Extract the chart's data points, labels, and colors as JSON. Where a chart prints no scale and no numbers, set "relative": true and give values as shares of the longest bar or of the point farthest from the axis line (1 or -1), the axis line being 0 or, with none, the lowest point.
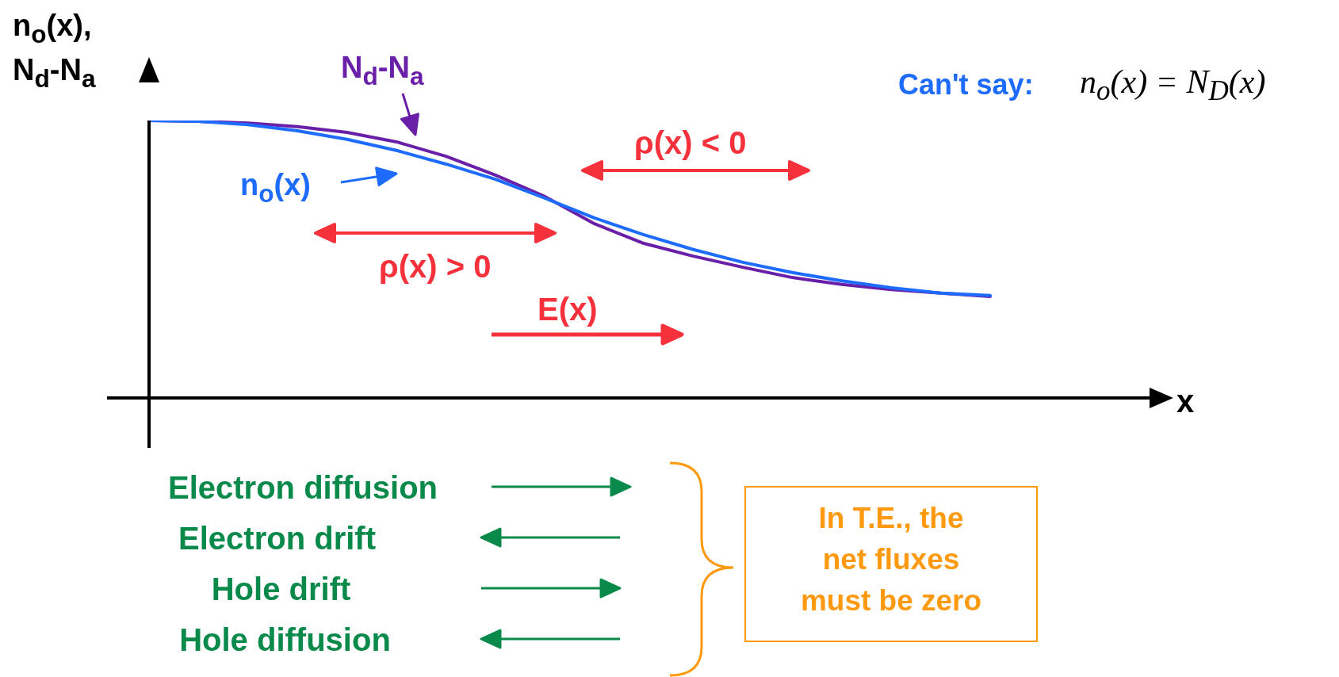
{
  "chart_data": {
    "type": "line",
    "relative": true,
    "ylabel": "n$_{o}$(x),\nN$_{d}$-N$_{a}$",
    "categories": [
      null,
      null,
      null,
      null,
      null,
      null,
      null,
      null,
      null,
      null,
      null,
      null,
      null,
      null,
      null,
      null,
      null,
      null
    ],
    "series": [
      {
        "name": "N$_{d}$-N$_{a}$",
        "color": "#6a1fa8",
        "values": [
          1.0,
          0.997,
          0.991,
          0.978,
          0.957,
          0.923,
          0.871,
          0.803,
          0.726,
          0.628,
          0.557,
          0.511,
          0.471,
          0.434,
          0.409,
          0.391,
          0.378,
          0.366
        ]
      },
      {
        "name": "n$_{o}$(x)",
        "color": "#1e6bff",
        "values": [
          1.0,
          0.997,
          0.985,
          0.963,
          0.932,
          0.892,
          0.843,
          0.788,
          0.72,
          0.649,
          0.588,
          0.535,
          0.489,
          0.452,
          0.422,
          0.397,
          0.378,
          0.369
        ]
      }
    ],
    "annotations": [
      "Can't say:",
      "n$_{o}$(x) = N$_{D}$(x)",
      "ρ(x) < 0",
      "ρ(x) > 0",
      "E(x)",
      "Electron diffusion",
      "Electron drift",
      "Hole drift",
      "Hole diffusion",
      "In T.E., the net fluxes must be zero",
      "x"
    ]
  }
}
